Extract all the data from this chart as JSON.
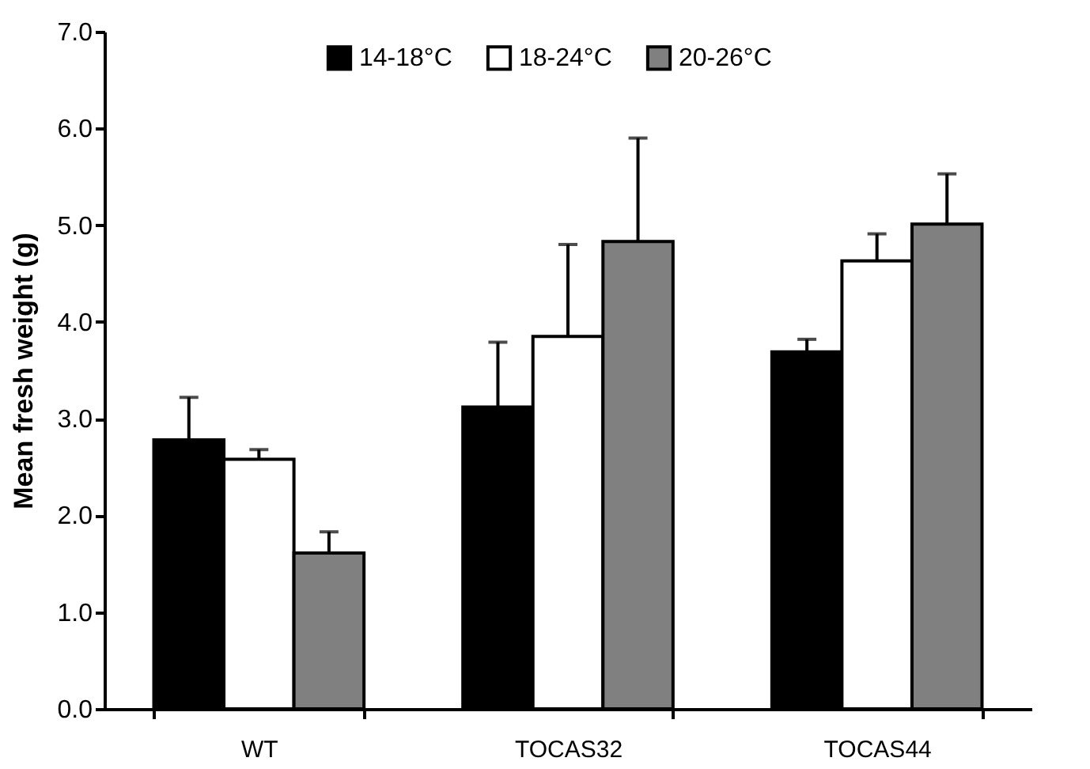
{
  "chart_data": {
    "type": "bar",
    "ylabel": "Mean fresh weight (g)",
    "categories": [
      "WT",
      "TOCAS32",
      "TOCAS44"
    ],
    "series": [
      {
        "name": "14-18°C",
        "color": "#000000",
        "values": [
          2.78,
          3.12,
          3.69
        ],
        "errors": [
          [
            2.78,
            3.22
          ],
          [
            3.12,
            3.79
          ],
          [
            3.69,
            3.82
          ]
        ]
      },
      {
        "name": "18-24°C",
        "color": "#ffffff",
        "values": [
          2.58,
          3.85,
          4.63
        ],
        "errors": [
          [
            2.58,
            2.68
          ],
          [
            3.85,
            4.8
          ],
          [
            4.63,
            4.91
          ]
        ]
      },
      {
        "name": "20-26°C",
        "color": "#808080",
        "values": [
          1.61,
          4.83,
          5.01
        ],
        "errors": [
          [
            1.61,
            1.83
          ],
          [
            4.83,
            5.9
          ],
          [
            5.01,
            5.53
          ]
        ]
      }
    ],
    "ylim": [
      0,
      7
    ],
    "yticks": [
      {
        "value": 0,
        "label": "0.0"
      },
      {
        "value": 1,
        "label": "1.0"
      },
      {
        "value": 2,
        "label": "2.0"
      },
      {
        "value": 3,
        "label": "3.0"
      },
      {
        "value": 4,
        "label": "4.0"
      },
      {
        "value": 5,
        "label": "5.0"
      },
      {
        "value": 6,
        "label": "6.0"
      },
      {
        "value": 7,
        "label": "7.0"
      }
    ],
    "grid": false,
    "legend": "top"
  }
}
